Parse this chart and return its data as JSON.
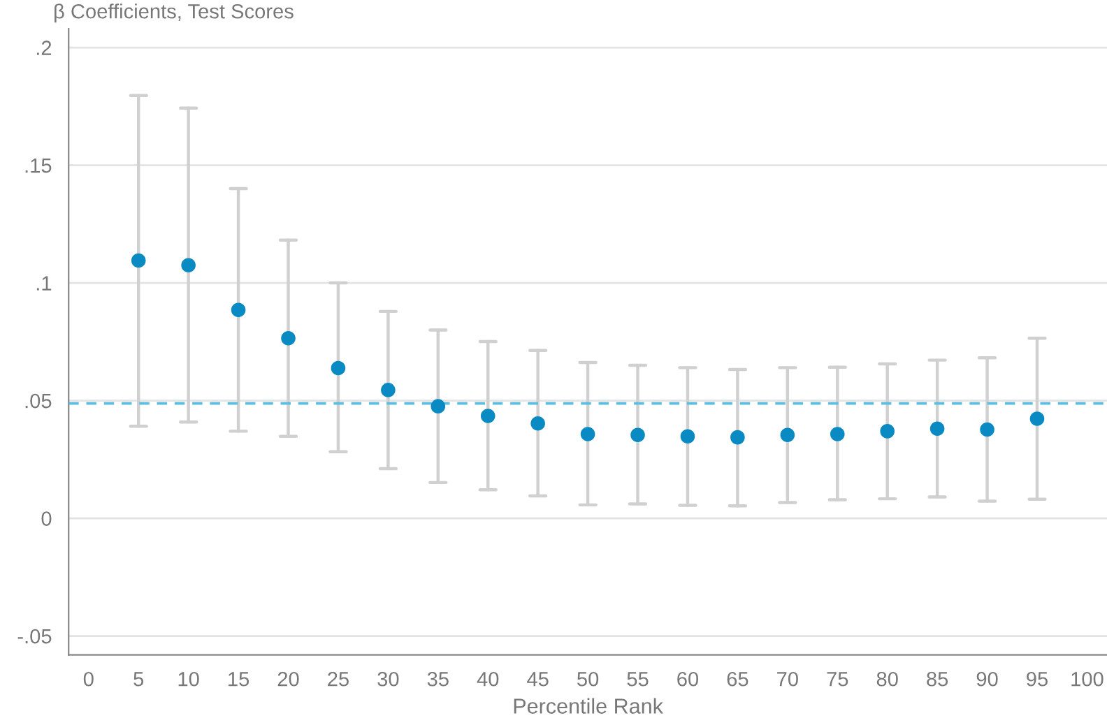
{
  "chart_data": {
    "type": "scatter",
    "title": "β Coefficients, Test Scores",
    "xlabel": "Percentile Rank",
    "x": [
      5,
      10,
      15,
      20,
      25,
      30,
      35,
      40,
      45,
      50,
      55,
      60,
      65,
      70,
      75,
      80,
      85,
      90,
      95
    ],
    "series": [
      {
        "color": "#0a8ac2",
        "values": [
          0.1095,
          0.1075,
          0.0885,
          0.0765,
          0.0638,
          0.0545,
          0.0476,
          0.0435,
          0.0403,
          0.0358,
          0.0354,
          0.0348,
          0.0344,
          0.0354,
          0.0358,
          0.037,
          0.0381,
          0.0377,
          0.0423
        ],
        "errors": [
          [
            0.0391,
            0.1796
          ],
          [
            0.0409,
            0.1743
          ],
          [
            0.037,
            0.1401
          ],
          [
            0.0348,
            0.1182
          ],
          [
            0.0283,
            0.1
          ],
          [
            0.0211,
            0.0879
          ],
          [
            0.0152,
            0.08
          ],
          [
            0.0121,
            0.0751
          ],
          [
            0.0095,
            0.0713
          ],
          [
            0.0057,
            0.0662
          ],
          [
            0.0061,
            0.065
          ],
          [
            0.0055,
            0.064
          ],
          [
            0.0053,
            0.0632
          ],
          [
            0.0067,
            0.064
          ],
          [
            0.0079,
            0.0642
          ],
          [
            0.0083,
            0.0656
          ],
          [
            0.0091,
            0.0672
          ],
          [
            0.0073,
            0.0682
          ],
          [
            0.0081,
            0.0765
          ]
        ]
      }
    ],
    "ref_lines": [
      {
        "axis": "y",
        "value": 0.0488,
        "color": "#5bbde0",
        "line_style": "dashed"
      }
    ],
    "xlim": [
      -2,
      102
    ],
    "xticks": [
      0,
      5,
      10,
      15,
      20,
      25,
      30,
      35,
      40,
      45,
      50,
      55,
      60,
      65,
      70,
      75,
      80,
      85,
      90,
      95,
      100
    ],
    "ylim": [
      -0.058,
      0.208
    ],
    "yticks": [
      {
        "value": -0.05,
        "label": "-.05"
      },
      0,
      {
        "value": 0.05,
        "label": ".05"
      },
      {
        "value": 0.1,
        "label": ".1"
      },
      {
        "value": 0.15,
        "label": ".15"
      },
      {
        "value": 0.2,
        "label": ".2"
      }
    ],
    "grid": "y",
    "marker": "circle",
    "legend": false
  }
}
